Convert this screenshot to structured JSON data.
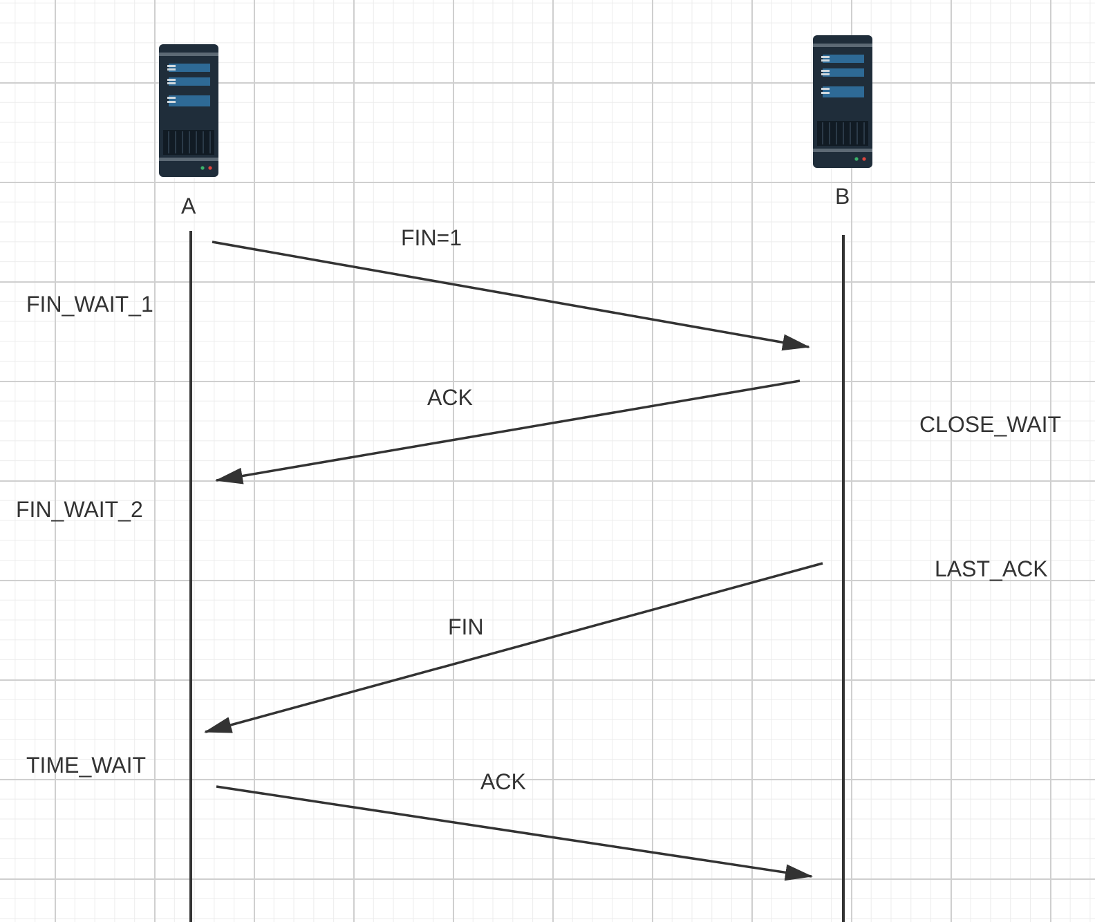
{
  "nodes": {
    "a": {
      "label": "A"
    },
    "b": {
      "label": "B"
    }
  },
  "states": {
    "a": [
      "FIN_WAIT_1",
      "FIN_WAIT_2",
      "TIME_WAIT"
    ],
    "b": [
      "CLOSE_WAIT",
      "LAST_ACK"
    ]
  },
  "messages": [
    {
      "label": "FIN=1",
      "from": "A",
      "to": "B"
    },
    {
      "label": "ACK",
      "from": "B",
      "to": "A"
    },
    {
      "label": "FIN",
      "from": "B",
      "to": "A"
    },
    {
      "label": "ACK",
      "from": "A",
      "to": "B"
    }
  ],
  "colors": {
    "server_body": "#1f2d3a",
    "server_slot": "#2e6a96",
    "line": "#333333"
  }
}
